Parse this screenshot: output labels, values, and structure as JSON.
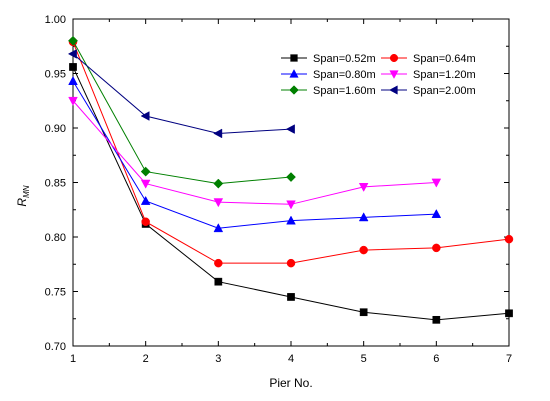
{
  "chart_data": {
    "type": "line",
    "xlabel": "Pier No.",
    "ylabel_main": "R",
    "ylabel_sub": "MN",
    "xlim": [
      1,
      7
    ],
    "ylim": [
      0.7,
      1.0
    ],
    "xticks": [
      "1",
      "2",
      "3",
      "4",
      "5",
      "6",
      "7"
    ],
    "yticks": [
      "0.70",
      "0.75",
      "0.80",
      "0.85",
      "0.90",
      "0.95",
      "1.00"
    ],
    "legend_position": "top-right",
    "series": [
      {
        "name": "Span=0.52m",
        "color": "#000000",
        "marker": "square",
        "x": [
          1,
          2,
          3,
          4,
          5,
          6,
          7
        ],
        "y": [
          0.956,
          0.812,
          0.759,
          0.745,
          0.731,
          0.724,
          0.73
        ]
      },
      {
        "name": "Span=0.64m",
        "color": "#ff0000",
        "marker": "circle",
        "x": [
          1,
          2,
          3,
          4,
          5,
          6,
          7
        ],
        "y": [
          0.979,
          0.814,
          0.776,
          0.776,
          0.788,
          0.79,
          0.798
        ]
      },
      {
        "name": "Span=0.80m",
        "color": "#0000ff",
        "marker": "triangle-up",
        "x": [
          1,
          2,
          3,
          4,
          5,
          6
        ],
        "y": [
          0.943,
          0.833,
          0.808,
          0.815,
          0.818,
          0.821
        ]
      },
      {
        "name": "Span=1.20m",
        "color": "#ff00ff",
        "marker": "triangle-down",
        "x": [
          1,
          2,
          3,
          4,
          5,
          6
        ],
        "y": [
          0.925,
          0.849,
          0.832,
          0.83,
          0.846,
          0.85
        ]
      },
      {
        "name": "Span=1.60m",
        "color": "#008000",
        "marker": "diamond",
        "x": [
          1,
          2,
          3,
          4
        ],
        "y": [
          0.98,
          0.86,
          0.849,
          0.855
        ]
      },
      {
        "name": "Span=2.00m",
        "color": "#000080",
        "marker": "triangle-left",
        "x": [
          1,
          2,
          3,
          4
        ],
        "y": [
          0.968,
          0.911,
          0.895,
          0.899
        ]
      }
    ]
  }
}
